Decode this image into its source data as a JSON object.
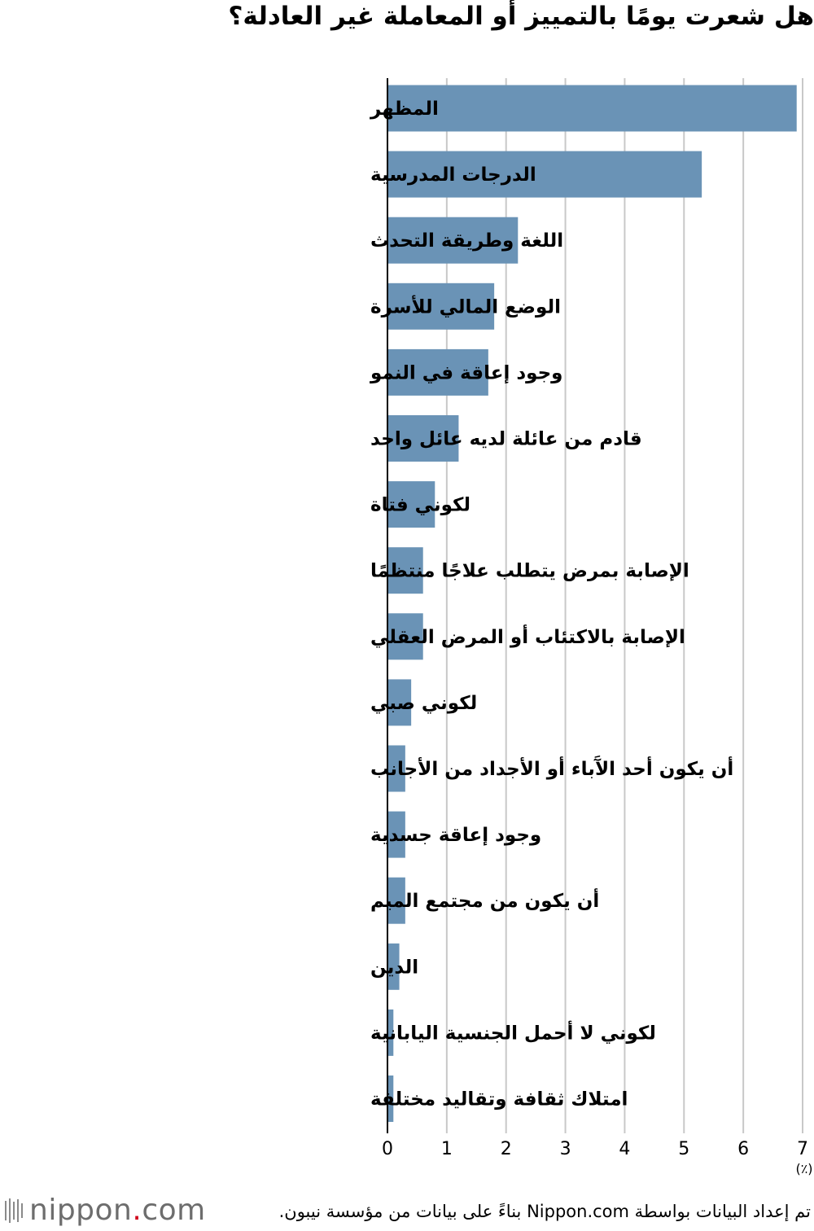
{
  "title": "هل شعرت يومًا بالتمييز أو المعاملة غير العادلة؟",
  "chart_data": {
    "type": "bar",
    "orientation": "horizontal",
    "title": "هل شعرت يومًا بالتمييز أو المعاملة غير العادلة؟",
    "categories": [
      "المظهر",
      "الدرجات المدرسية",
      "اللغة وطريقة التحدث",
      "الوضع المالي للأسرة",
      "وجود إعاقة في النمو",
      "قادم من عائلة لديه عائل واحد",
      "لكوني فتاة",
      "الإصابة بمرض يتطلب علاجًا منتظمًا",
      "الإصابة بالاكتئاب أو المرض العقلي",
      "لكوني صبي",
      "أن يكون أحد الآَباء أو الأجداد من الأجانب",
      "وجود إعاقة جسدية",
      "أن يكون من مجتمع الميم",
      "الدين",
      "لكوني لا أحمل الجنسية اليابانية",
      "امتلاك ثقافة وتقاليد مختلفة"
    ],
    "values": [
      6.9,
      5.3,
      2.2,
      1.8,
      1.7,
      1.2,
      0.8,
      0.6,
      0.6,
      0.4,
      0.3,
      0.3,
      0.3,
      0.2,
      0.1,
      0.1
    ],
    "xlim": [
      0,
      7
    ],
    "ticks": [
      "0",
      "1",
      "2",
      "3",
      "4",
      "5",
      "6",
      "7"
    ],
    "unit": "(٪)",
    "bar_color": "#6a93b6",
    "grid_color": "#c8c8c8",
    "grid": true
  },
  "footer": {
    "source": "تم إعداد البيانات بواسطة Nippon.com بناءً على بيانات من مؤسسة نيبون.",
    "logo_text": "nippon",
    "logo_dot": ".",
    "logo_suffix": "com",
    "logo_accent": "#d0021b"
  }
}
